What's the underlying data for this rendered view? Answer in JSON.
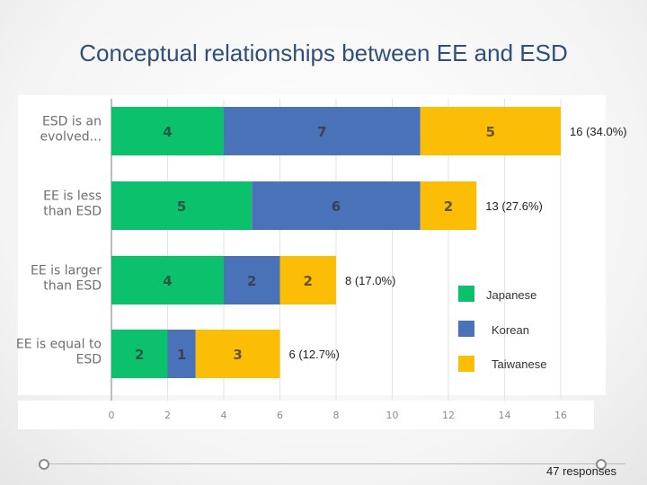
{
  "slide": {
    "title": "Conceptual relationships between EE and ESD",
    "responses": "47 responses"
  },
  "chart_data": {
    "type": "bar",
    "orientation": "horizontal",
    "stacked": true,
    "title": "Conceptual relationships between EE and ESD",
    "categories": [
      [
        "ESD is an",
        "evolved..."
      ],
      [
        "EE is less",
        "than ESD"
      ],
      [
        "EE is larger",
        "than ESD"
      ],
      [
        "EE is equal to",
        "ESD"
      ]
    ],
    "series": [
      {
        "name": "Japanese",
        "color": "#0cc16c",
        "values": [
          4,
          5,
          4,
          2
        ]
      },
      {
        "name": "Korean",
        "color": "#4a72b8",
        "values": [
          7,
          6,
          2,
          1
        ]
      },
      {
        "name": "Taiwanese",
        "color": "#fbbd06",
        "values": [
          5,
          2,
          2,
          3
        ]
      }
    ],
    "totals": [
      "16 (34.0%)",
      "13 (27.6%)",
      "8 (17.0%)",
      "6 (12.7%)"
    ],
    "x_ticks": [
      0,
      2,
      4,
      6,
      8,
      10,
      12,
      14,
      16
    ],
    "xlim": [
      0,
      16
    ],
    "grid": true,
    "legend_position": "right"
  }
}
